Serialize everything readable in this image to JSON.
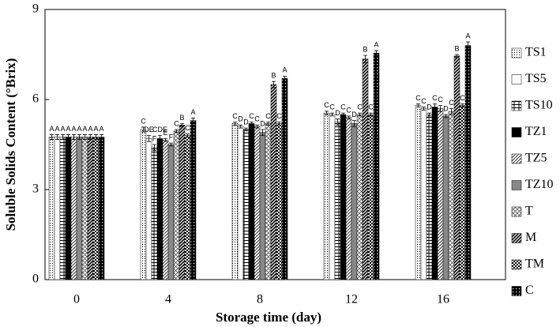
{
  "chart_data": {
    "type": "bar",
    "x_label": "Storage time (day)",
    "y_label": "Soluble Solids Content (°Brix)",
    "categories": [
      "0",
      "4",
      "8",
      "12",
      "16"
    ],
    "ylim": [
      0,
      9
    ],
    "yticks": [
      0,
      3,
      6,
      9
    ],
    "series": [
      {
        "name": "TS1",
        "values": [
          4.75,
          5.0,
          5.2,
          5.55,
          5.8
        ],
        "errors": [
          0.08,
          0.08,
          0.05,
          0.06,
          0.05
        ],
        "letters": [
          "A",
          "C",
          "C",
          "C",
          "C"
        ]
      },
      {
        "name": "TS5",
        "values": [
          4.75,
          4.7,
          5.1,
          5.5,
          5.7
        ],
        "errors": [
          0.08,
          0.1,
          0.05,
          0.05,
          0.05
        ],
        "letters": [
          "A",
          "DE",
          "D",
          "C",
          "C"
        ]
      },
      {
        "name": "TS10",
        "values": [
          4.75,
          4.4,
          5.0,
          5.25,
          5.5
        ],
        "errors": [
          0.08,
          0.1,
          0.05,
          0.1,
          0.05
        ],
        "letters": [
          "A",
          "F",
          "D",
          "D",
          "D"
        ]
      },
      {
        "name": "TZ1",
        "values": [
          4.75,
          4.7,
          5.2,
          5.5,
          5.75
        ],
        "errors": [
          0.08,
          0.1,
          0.05,
          0.05,
          0.1
        ],
        "letters": [
          "A",
          "CDE",
          "C",
          "C",
          "C"
        ]
      },
      {
        "name": "TZ5",
        "values": [
          4.75,
          4.65,
          5.1,
          5.4,
          5.7
        ],
        "errors": [
          0.08,
          0.05,
          0.05,
          0.05,
          0.1
        ],
        "letters": [
          "A",
          "E",
          "C",
          "C",
          "C"
        ]
      },
      {
        "name": "TZ10",
        "values": [
          4.75,
          4.5,
          4.9,
          5.2,
          5.45
        ],
        "errors": [
          0.08,
          0.05,
          0.1,
          0.1,
          0.05
        ],
        "letters": [
          "A",
          "F",
          "D",
          "D",
          "D"
        ]
      },
      {
        "name": "T",
        "values": [
          4.75,
          4.95,
          5.2,
          5.5,
          5.6
        ],
        "errors": [
          0.08,
          0.05,
          0.05,
          0.05,
          0.1
        ],
        "letters": [
          "A",
          "C",
          "C",
          "C",
          "C"
        ]
      },
      {
        "name": "M",
        "values": [
          4.75,
          5.15,
          6.5,
          7.35,
          7.45
        ],
        "errors": [
          0.08,
          0.05,
          0.1,
          0.12,
          0.05
        ],
        "letters": [
          "A",
          "B",
          "B",
          "B",
          "B"
        ]
      },
      {
        "name": "TM",
        "values": [
          4.75,
          4.8,
          5.2,
          5.5,
          5.8
        ],
        "errors": [
          0.08,
          0.05,
          0.05,
          0.05,
          0.05
        ],
        "letters": [
          "A",
          "C",
          "C",
          "C",
          "C"
        ]
      },
      {
        "name": "C",
        "values": [
          4.75,
          5.3,
          6.7,
          7.55,
          7.8
        ],
        "errors": [
          0.08,
          0.08,
          0.08,
          0.08,
          0.12
        ],
        "letters": [
          "A",
          "A",
          "A",
          "A",
          "A"
        ]
      }
    ]
  }
}
